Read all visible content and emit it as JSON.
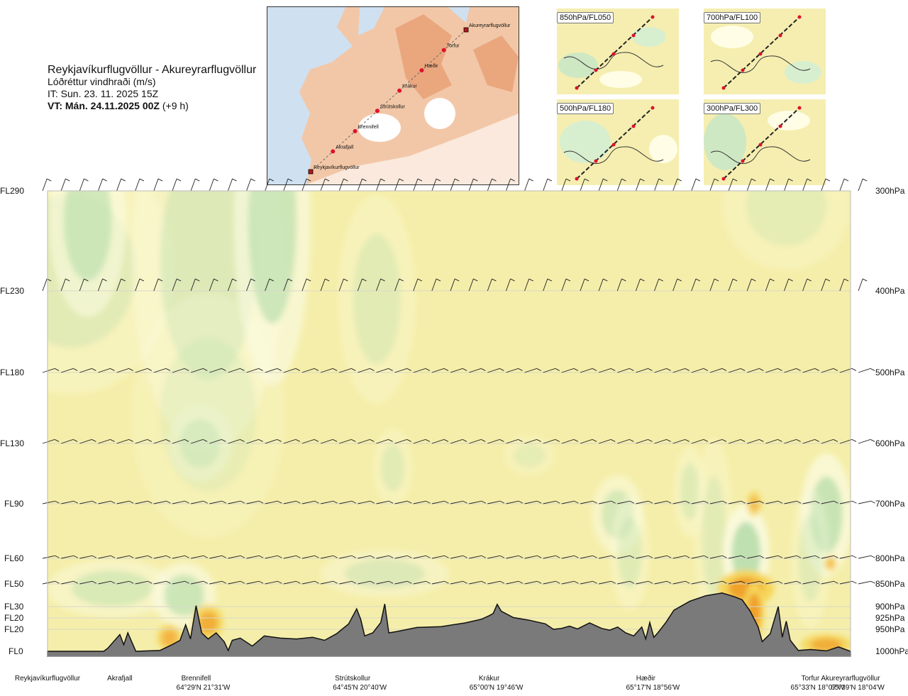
{
  "header": {
    "title": "Reykjavíkurflugvöllur - Akureyrarflugvöllur",
    "subtitle": "Lóðréttur vindhraði (m/s)",
    "issue_time": "IT: Sun. 23. 11. 2025 15Z",
    "valid_time": "VT: Mán. 24.11.2025 00Z",
    "valid_offset": "(+9 h)"
  },
  "route_map": {
    "waypoints": [
      "Akureyrarflugvöllur",
      "Torfur",
      "Hæðir",
      "Krákur",
      "Strútskollur",
      "Brennifell",
      "Akrafjall",
      "Reykjavíkurflugvöllur"
    ]
  },
  "level_maps": [
    {
      "label": "850hPa/FL050"
    },
    {
      "label": "700hPa/FL100"
    },
    {
      "label": "500hPa/FL180"
    },
    {
      "label": "300hPa/FL300"
    }
  ],
  "chart_data": {
    "type": "heatmap",
    "title": "Reykjavíkurflugvöllur - Akureyrarflugvöllur",
    "subtitle": "Lóðréttur vindhraði (m/s)",
    "levels": [
      {
        "fl": "FL290",
        "hpa": "300hPa",
        "p": 300
      },
      {
        "fl": "FL230",
        "hpa": "400hPa",
        "p": 400
      },
      {
        "fl": "FL180",
        "hpa": "500hPa",
        "p": 500
      },
      {
        "fl": "FL130",
        "hpa": "600hPa",
        "p": 600
      },
      {
        "fl": "FL90",
        "hpa": "700hPa",
        "p": 700
      },
      {
        "fl": "FL60",
        "hpa": "800hPa",
        "p": 800
      },
      {
        "fl": "FL50",
        "hpa": "850hPa",
        "p": 850
      },
      {
        "fl": "FL30",
        "hpa": "900hPa",
        "p": 900
      },
      {
        "fl": "FL20",
        "hpa": "925hPa",
        "p": 925
      },
      {
        "fl": "FL20",
        "hpa": "950hPa",
        "p": 950
      },
      {
        "fl": "FL0",
        "hpa": "1000hPa",
        "p": 1000
      }
    ],
    "locations": [
      {
        "name": "Reykjavíkurflugvöllur",
        "coord": "",
        "dist": 0
      },
      {
        "name": "Akrafjall",
        "coord": "",
        "dist": 0.09
      },
      {
        "name": "Brennifell",
        "coord": "64°29'N 21°31'W",
        "dist": 0.185
      },
      {
        "name": "Strútskollur",
        "coord": "64°45'N 20°40'W",
        "dist": 0.38
      },
      {
        "name": "Krákur",
        "coord": "65°00'N 19°46'W",
        "dist": 0.55
      },
      {
        "name": "Hæðir",
        "coord": "65°17'N 18°56'W",
        "dist": 0.745
      },
      {
        "name": "Torfur",
        "coord": "65°33'N 18°07'W",
        "dist": 0.95
      },
      {
        "name": "Akureyrarflugvöllur",
        "coord": "65°39'N 18°04'W",
        "dist": 1.0
      }
    ],
    "terrain_pressure_hpa": [
      [
        0,
        1000
      ],
      [
        0.07,
        1000
      ],
      [
        0.075,
        993
      ],
      [
        0.09,
        962
      ],
      [
        0.095,
        985
      ],
      [
        0.1,
        958
      ],
      [
        0.11,
        1000
      ],
      [
        0.14,
        998
      ],
      [
        0.155,
        985
      ],
      [
        0.165,
        975
      ],
      [
        0.172,
        940
      ],
      [
        0.178,
        972
      ],
      [
        0.185,
        898
      ],
      [
        0.192,
        958
      ],
      [
        0.2,
        972
      ],
      [
        0.21,
        958
      ],
      [
        0.22,
        978
      ],
      [
        0.225,
        998
      ],
      [
        0.23,
        975
      ],
      [
        0.24,
        970
      ],
      [
        0.255,
        988
      ],
      [
        0.27,
        965
      ],
      [
        0.29,
        970
      ],
      [
        0.31,
        972
      ],
      [
        0.33,
        968
      ],
      [
        0.345,
        975
      ],
      [
        0.36,
        960
      ],
      [
        0.375,
        938
      ],
      [
        0.385,
        905
      ],
      [
        0.39,
        928
      ],
      [
        0.395,
        965
      ],
      [
        0.405,
        958
      ],
      [
        0.415,
        935
      ],
      [
        0.42,
        894
      ],
      [
        0.425,
        958
      ],
      [
        0.435,
        955
      ],
      [
        0.46,
        946
      ],
      [
        0.49,
        944
      ],
      [
        0.52,
        936
      ],
      [
        0.54,
        928
      ],
      [
        0.55,
        920
      ],
      [
        0.555,
        915
      ],
      [
        0.56,
        895
      ],
      [
        0.565,
        910
      ],
      [
        0.58,
        924
      ],
      [
        0.6,
        930
      ],
      [
        0.62,
        938
      ],
      [
        0.63,
        950
      ],
      [
        0.64,
        948
      ],
      [
        0.65,
        943
      ],
      [
        0.66,
        949
      ],
      [
        0.675,
        936
      ],
      [
        0.69,
        948
      ],
      [
        0.7,
        952
      ],
      [
        0.71,
        945
      ],
      [
        0.72,
        958
      ],
      [
        0.73,
        965
      ],
      [
        0.74,
        945
      ],
      [
        0.745,
        972
      ],
      [
        0.75,
        935
      ],
      [
        0.755,
        968
      ],
      [
        0.76,
        958
      ],
      [
        0.77,
        935
      ],
      [
        0.78,
        908
      ],
      [
        0.8,
        888
      ],
      [
        0.82,
        876
      ],
      [
        0.84,
        870
      ],
      [
        0.855,
        878
      ],
      [
        0.865,
        885
      ],
      [
        0.875,
        910
      ],
      [
        0.885,
        945
      ],
      [
        0.89,
        978
      ],
      [
        0.9,
        960
      ],
      [
        0.91,
        900
      ],
      [
        0.915,
        968
      ],
      [
        0.92,
        932
      ],
      [
        0.925,
        975
      ],
      [
        0.935,
        998
      ],
      [
        0.95,
        996
      ],
      [
        0.97,
        999
      ],
      [
        0.985,
        990
      ],
      [
        1.0,
        1000
      ]
    ],
    "vertical_wind_blobs": [
      {
        "x": 0.03,
        "p": 380,
        "rx": 0.08,
        "rp": 90,
        "w": 0.15
      },
      {
        "x": 0.05,
        "p": 330,
        "rx": 0.03,
        "rp": 60,
        "w": 0.28
      },
      {
        "x": 0.2,
        "p": 370,
        "rx": 0.06,
        "rp": 140,
        "w": 0.18
      },
      {
        "x": 0.28,
        "p": 330,
        "rx": 0.03,
        "rp": 110,
        "w": 0.3
      },
      {
        "x": 0.41,
        "p": 410,
        "rx": 0.03,
        "rp": 80,
        "w": 0.14
      },
      {
        "x": 0.19,
        "p": 600,
        "rx": 0.025,
        "rp": 40,
        "w": 0.22
      },
      {
        "x": 0.2,
        "p": 560,
        "rx": 0.06,
        "rp": 120,
        "w": 0.1
      },
      {
        "x": 0.08,
        "p": 860,
        "rx": 0.05,
        "rp": 40,
        "w": 0.22
      },
      {
        "x": 0.17,
        "p": 875,
        "rx": 0.025,
        "rp": 45,
        "w": 0.3
      },
      {
        "x": 0.42,
        "p": 830,
        "rx": 0.05,
        "rp": 30,
        "w": 0.18
      },
      {
        "x": 0.43,
        "p": 640,
        "rx": 0.015,
        "rp": 40,
        "w": 0.14
      },
      {
        "x": 0.6,
        "p": 620,
        "rx": 0.02,
        "rp": 20,
        "w": 0.12
      },
      {
        "x": 0.71,
        "p": 720,
        "rx": 0.02,
        "rp": 45,
        "w": 0.24
      },
      {
        "x": 0.725,
        "p": 790,
        "rx": 0.015,
        "rp": 70,
        "w": 0.16
      },
      {
        "x": 0.8,
        "p": 680,
        "rx": 0.012,
        "rp": 50,
        "w": 0.16
      },
      {
        "x": 0.83,
        "p": 760,
        "rx": 0.015,
        "rp": 120,
        "w": 0.14
      },
      {
        "x": 0.87,
        "p": 790,
        "rx": 0.018,
        "rp": 60,
        "w": 0.4
      },
      {
        "x": 0.97,
        "p": 720,
        "rx": 0.02,
        "rp": 70,
        "w": 0.34
      },
      {
        "x": 0.92,
        "p": 315,
        "rx": 0.05,
        "rp": 40,
        "w": 0.12
      },
      {
        "x": 0.95,
        "p": 800,
        "rx": 0.015,
        "rp": 90,
        "w": 0.14
      },
      {
        "x": 0.87,
        "p": 860,
        "rx": 0.022,
        "rp": 25,
        "w": -0.55
      },
      {
        "x": 0.88,
        "p": 910,
        "rx": 0.008,
        "rp": 40,
        "w": -0.9
      },
      {
        "x": 0.88,
        "p": 700,
        "rx": 0.006,
        "rp": 15,
        "w": -0.3
      },
      {
        "x": 0.975,
        "p": 810,
        "rx": 0.005,
        "rp": 10,
        "w": -0.3
      },
      {
        "x": 0.97,
        "p": 985,
        "rx": 0.02,
        "rp": 15,
        "w": -0.4
      },
      {
        "x": 0.2,
        "p": 935,
        "rx": 0.012,
        "rp": 25,
        "w": -0.4
      },
      {
        "x": 0.152,
        "p": 970,
        "rx": 0.01,
        "rp": 20,
        "w": -0.35
      }
    ]
  }
}
